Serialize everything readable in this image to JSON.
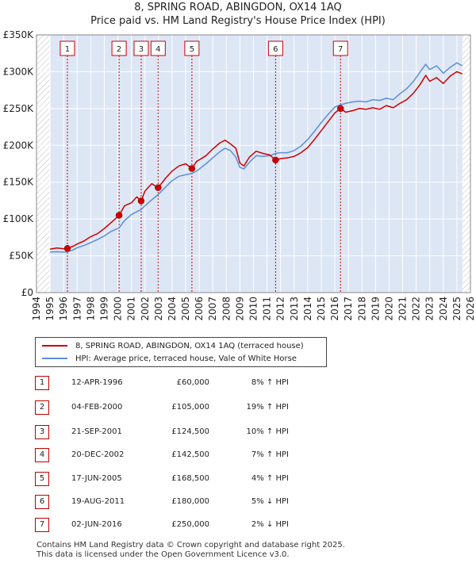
{
  "title": "8, SPRING ROAD, ABINGDON, OX14 1AQ",
  "subtitle": "Price paid vs. HM Land Registry's House Price Index (HPI)",
  "colors": {
    "property": "#cc0000",
    "hpi": "#5b8fd6",
    "band": "#dde6f5",
    "marker_border": "#cc0000",
    "hatch": "#bbbbbb"
  },
  "chart_data": {
    "type": "line",
    "title": "8, SPRING ROAD, ABINGDON, OX14 1AQ",
    "subtitle": "Price paid vs. HM Land Registry's House Price Index (HPI)",
    "xlabel": "",
    "ylabel": "",
    "xlim": [
      1994,
      2026
    ],
    "ylim": [
      0,
      350000
    ],
    "x_ticks": [
      "1994",
      "1995",
      "1996",
      "1997",
      "1998",
      "1999",
      "2000",
      "2001",
      "2002",
      "2003",
      "2004",
      "2005",
      "2006",
      "2007",
      "2008",
      "2009",
      "2010",
      "2011",
      "2012",
      "2013",
      "2014",
      "2015",
      "2016",
      "2017",
      "2018",
      "2019",
      "2020",
      "2021",
      "2022",
      "2023",
      "2024",
      "2025",
      "2026"
    ],
    "y_ticks": [
      {
        "value": 0,
        "label": "£0"
      },
      {
        "value": 50000,
        "label": "£50K"
      },
      {
        "value": 100000,
        "label": "£100K"
      },
      {
        "value": 150000,
        "label": "£150K"
      },
      {
        "value": 200000,
        "label": "£200K"
      },
      {
        "value": 250000,
        "label": "£250K"
      },
      {
        "value": 300000,
        "label": "£300K"
      },
      {
        "value": 350000,
        "label": "£350K"
      }
    ],
    "data_range": [
      1995.0,
      2025.4
    ],
    "series": [
      {
        "name": "8, SPRING ROAD, ABINGDON, OX14 1AQ (terraced house)",
        "color": "#cc0000",
        "points": [
          [
            1995.0,
            59000
          ],
          [
            1995.5,
            60500
          ],
          [
            1996.0,
            59500
          ],
          [
            1996.28,
            60000
          ],
          [
            1996.7,
            63000
          ],
          [
            1997.0,
            66000
          ],
          [
            1997.5,
            70000
          ],
          [
            1998.0,
            76000
          ],
          [
            1998.5,
            80000
          ],
          [
            1999.0,
            87000
          ],
          [
            1999.5,
            95000
          ],
          [
            2000.09,
            105000
          ],
          [
            2000.5,
            118000
          ],
          [
            2001.0,
            122000
          ],
          [
            2001.4,
            130000
          ],
          [
            2001.72,
            124500
          ],
          [
            2002.0,
            138000
          ],
          [
            2002.5,
            148000
          ],
          [
            2002.97,
            142500
          ],
          [
            2003.5,
            155000
          ],
          [
            2004.0,
            165000
          ],
          [
            2004.5,
            172000
          ],
          [
            2005.0,
            175000
          ],
          [
            2005.46,
            168500
          ],
          [
            2005.8,
            178000
          ],
          [
            2006.5,
            186000
          ],
          [
            2007.0,
            195000
          ],
          [
            2007.5,
            203000
          ],
          [
            2007.9,
            207000
          ],
          [
            2008.3,
            202000
          ],
          [
            2008.7,
            196000
          ],
          [
            2009.0,
            176000
          ],
          [
            2009.3,
            172000
          ],
          [
            2009.7,
            184000
          ],
          [
            2010.2,
            192000
          ],
          [
            2010.7,
            189000
          ],
          [
            2011.2,
            187000
          ],
          [
            2011.63,
            180000
          ],
          [
            2012.0,
            182000
          ],
          [
            2012.5,
            183000
          ],
          [
            2013.0,
            185000
          ],
          [
            2013.5,
            190000
          ],
          [
            2014.0,
            197000
          ],
          [
            2014.5,
            208000
          ],
          [
            2015.0,
            220000
          ],
          [
            2015.5,
            232000
          ],
          [
            2016.0,
            244000
          ],
          [
            2016.42,
            250000
          ],
          [
            2016.8,
            245000
          ],
          [
            2017.3,
            247000
          ],
          [
            2017.8,
            250000
          ],
          [
            2018.3,
            249000
          ],
          [
            2018.8,
            251000
          ],
          [
            2019.3,
            249000
          ],
          [
            2019.8,
            254000
          ],
          [
            2020.3,
            251000
          ],
          [
            2020.8,
            257000
          ],
          [
            2021.3,
            262000
          ],
          [
            2021.8,
            271000
          ],
          [
            2022.3,
            283000
          ],
          [
            2022.7,
            295000
          ],
          [
            2023.0,
            287000
          ],
          [
            2023.5,
            292000
          ],
          [
            2024.0,
            284000
          ],
          [
            2024.5,
            294000
          ],
          [
            2025.0,
            300000
          ],
          [
            2025.4,
            297000
          ]
        ]
      },
      {
        "name": "HPI: Average price, terraced house, Vale of White Horse",
        "color": "#5b8fd6",
        "points": [
          [
            1995.0,
            55000
          ],
          [
            1995.5,
            55500
          ],
          [
            1996.0,
            55000
          ],
          [
            1996.28,
            55500
          ],
          [
            1996.7,
            58000
          ],
          [
            1997.0,
            61000
          ],
          [
            1997.5,
            64000
          ],
          [
            1998.0,
            68000
          ],
          [
            1998.5,
            72000
          ],
          [
            1999.0,
            77000
          ],
          [
            1999.5,
            83000
          ],
          [
            2000.09,
            88000
          ],
          [
            2000.5,
            98000
          ],
          [
            2001.0,
            106000
          ],
          [
            2001.72,
            113000
          ],
          [
            2002.0,
            118000
          ],
          [
            2002.5,
            126000
          ],
          [
            2002.97,
            133000
          ],
          [
            2003.5,
            143000
          ],
          [
            2004.0,
            152000
          ],
          [
            2004.5,
            158000
          ],
          [
            2005.0,
            160000
          ],
          [
            2005.46,
            162000
          ],
          [
            2005.8,
            165000
          ],
          [
            2006.5,
            175000
          ],
          [
            2007.0,
            183000
          ],
          [
            2007.5,
            191000
          ],
          [
            2007.9,
            196000
          ],
          [
            2008.3,
            193000
          ],
          [
            2008.7,
            184000
          ],
          [
            2009.0,
            170000
          ],
          [
            2009.3,
            168000
          ],
          [
            2009.7,
            177000
          ],
          [
            2010.2,
            186000
          ],
          [
            2010.7,
            185000
          ],
          [
            2011.2,
            186000
          ],
          [
            2011.63,
            189000
          ],
          [
            2012.0,
            190000
          ],
          [
            2012.5,
            190000
          ],
          [
            2013.0,
            193000
          ],
          [
            2013.5,
            199000
          ],
          [
            2014.0,
            208000
          ],
          [
            2014.5,
            219000
          ],
          [
            2015.0,
            231000
          ],
          [
            2015.5,
            242000
          ],
          [
            2016.0,
            252000
          ],
          [
            2016.42,
            255000
          ],
          [
            2016.8,
            257000
          ],
          [
            2017.3,
            259000
          ],
          [
            2017.8,
            260000
          ],
          [
            2018.3,
            259000
          ],
          [
            2018.8,
            262000
          ],
          [
            2019.3,
            261000
          ],
          [
            2019.8,
            264000
          ],
          [
            2020.3,
            262000
          ],
          [
            2020.8,
            270000
          ],
          [
            2021.3,
            277000
          ],
          [
            2021.8,
            287000
          ],
          [
            2022.3,
            300000
          ],
          [
            2022.7,
            310000
          ],
          [
            2023.0,
            303000
          ],
          [
            2023.5,
            308000
          ],
          [
            2024.0,
            298000
          ],
          [
            2024.5,
            306000
          ],
          [
            2025.0,
            312000
          ],
          [
            2025.4,
            308000
          ]
        ]
      }
    ],
    "sales": [
      {
        "label": "1",
        "x": 1996.28,
        "y": 60000
      },
      {
        "label": "2",
        "x": 2000.09,
        "y": 105000
      },
      {
        "label": "3",
        "x": 2001.72,
        "y": 124500
      },
      {
        "label": "4",
        "x": 2002.97,
        "y": 142500
      },
      {
        "label": "5",
        "x": 2005.46,
        "y": 168500
      },
      {
        "label": "6",
        "x": 2011.63,
        "y": 180000
      },
      {
        "label": "7",
        "x": 2016.42,
        "y": 250000
      }
    ]
  },
  "legend": {
    "property_label": "8, SPRING ROAD, ABINGDON, OX14 1AQ (terraced house)",
    "hpi_label": "HPI: Average price, terraced house, Vale of White Horse"
  },
  "transactions": [
    {
      "num": "1",
      "date": "12-APR-1996",
      "price": "£60,000",
      "hpi": "8% ↑ HPI"
    },
    {
      "num": "2",
      "date": "04-FEB-2000",
      "price": "£105,000",
      "hpi": "19% ↑ HPI"
    },
    {
      "num": "3",
      "date": "21-SEP-2001",
      "price": "£124,500",
      "hpi": "10% ↑ HPI"
    },
    {
      "num": "4",
      "date": "20-DEC-2002",
      "price": "£142,500",
      "hpi": "7% ↑ HPI"
    },
    {
      "num": "5",
      "date": "17-JUN-2005",
      "price": "£168,500",
      "hpi": "4% ↑ HPI"
    },
    {
      "num": "6",
      "date": "19-AUG-2011",
      "price": "£180,000",
      "hpi": "5% ↓ HPI"
    },
    {
      "num": "7",
      "date": "02-JUN-2016",
      "price": "£250,000",
      "hpi": "2% ↓ HPI"
    }
  ],
  "footer": {
    "line1": "Contains HM Land Registry data © Crown copyright and database right 2025.",
    "line2": "This data is licensed under the Open Government Licence v3.0."
  }
}
